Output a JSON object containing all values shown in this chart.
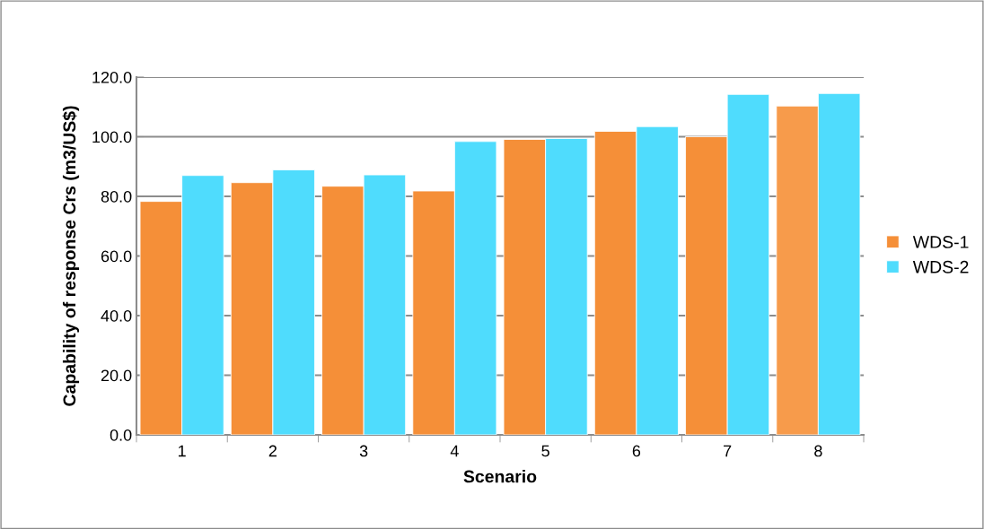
{
  "chart_data": {
    "type": "bar",
    "xlabel": "Scenario",
    "ylabel": "Capability of response Crs (m3/US$)",
    "categories": [
      "1",
      "2",
      "3",
      "4",
      "5",
      "6",
      "7",
      "8"
    ],
    "series": [
      {
        "name": "WDS-1",
        "color": "#f58f38",
        "colors": [
          "#f58f38",
          "#f58f38",
          "#f58f38",
          "#f58f38",
          "#f58f38",
          "#f58f38",
          "#f58f38",
          "#f79b4b"
        ],
        "values": [
          78.3,
          84.6,
          83.4,
          81.8,
          99.1,
          101.8,
          100.0,
          110.3
        ]
      },
      {
        "name": "WDS-2",
        "color": "#4fdcfd",
        "values": [
          87.0,
          88.9,
          87.2,
          98.4,
          99.4,
          103.4,
          114.2,
          114.5
        ]
      }
    ],
    "ylim": [
      0,
      120
    ],
    "yticks": [
      {
        "value": 0,
        "label": "0.0"
      },
      {
        "value": 20,
        "label": "20.0"
      },
      {
        "value": 40,
        "label": "40.0"
      },
      {
        "value": 60,
        "label": "60.0"
      },
      {
        "value": 80,
        "label": "80.0"
      },
      {
        "value": 100,
        "label": "100.0"
      },
      {
        "value": 120,
        "label": "120.0"
      }
    ],
    "grid": "y",
    "legend": "right"
  }
}
